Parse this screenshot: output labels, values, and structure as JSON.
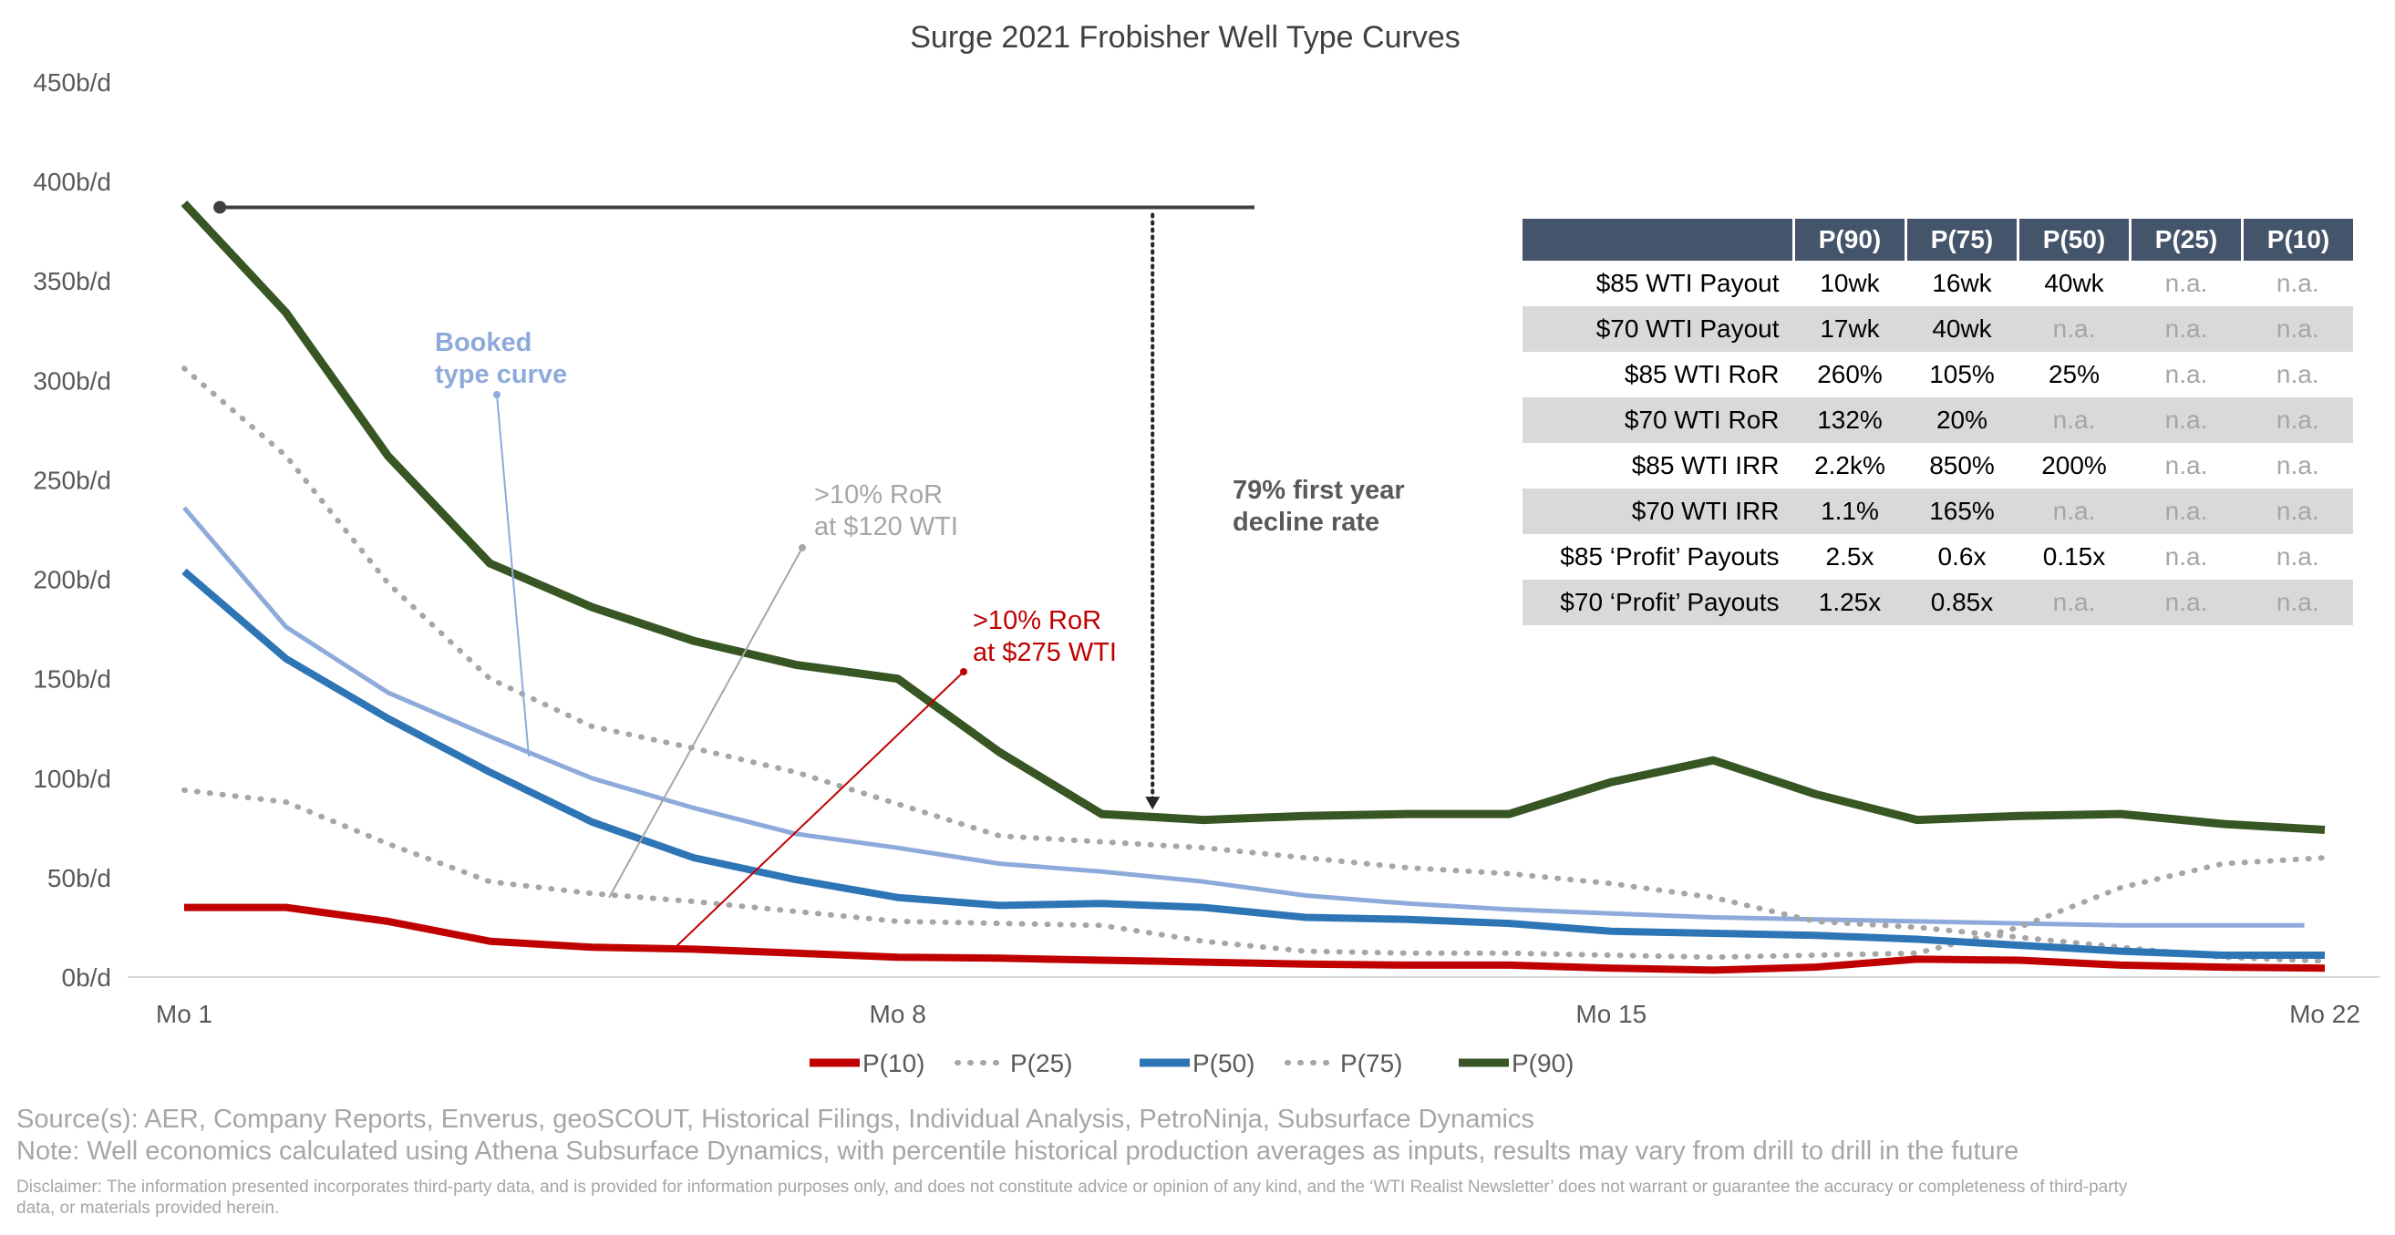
{
  "chart_data": {
    "type": "line",
    "title": "Surge 2021 Frobisher Well Type Curves",
    "xlabel": "",
    "ylabel": "",
    "ylim": [
      0,
      450
    ],
    "yticks": [
      "0b/d",
      "50b/d",
      "100b/d",
      "150b/d",
      "200b/d",
      "250b/d",
      "300b/d",
      "350b/d",
      "400b/d",
      "450b/d"
    ],
    "xtick_positions": [
      1,
      8,
      15,
      22
    ],
    "xtick_labels": [
      "Mo 1",
      "Mo 8",
      "Mo 15",
      "Mo 22"
    ],
    "legend_position": "bottom",
    "series": [
      {
        "name": "P(10)",
        "color": "#c00000",
        "style": "solid",
        "x": [
          1,
          2,
          3,
          4,
          5,
          6,
          7,
          8,
          9,
          10,
          11,
          12,
          13,
          14,
          15,
          16,
          17,
          18,
          19,
          20,
          21,
          22
        ],
        "values": [
          35,
          35,
          28,
          18,
          15,
          14,
          12,
          10,
          9.5,
          8.5,
          7.5,
          6.5,
          6,
          6,
          4.5,
          3.5,
          5,
          9,
          8.5,
          6,
          5,
          4.5
        ]
      },
      {
        "name": "P(25)",
        "color": "#a6a6a6",
        "style": "dotted",
        "x": [
          1,
          2,
          3,
          4,
          5,
          6,
          7,
          8,
          9,
          10,
          11,
          12,
          13,
          14,
          15,
          16,
          17,
          18,
          19,
          20,
          21,
          22
        ],
        "values": [
          94,
          88,
          67,
          48,
          42,
          38,
          33,
          28,
          27,
          26,
          18,
          13,
          12,
          12,
          11,
          10,
          11,
          12,
          25,
          45,
          57,
          60
        ]
      },
      {
        "name": "P(50)",
        "color": "#2e75b6",
        "style": "solid",
        "x": [
          1,
          2,
          3,
          4,
          5,
          6,
          7,
          8,
          9,
          10,
          11,
          12,
          13,
          14,
          15,
          16,
          17,
          18,
          19,
          20,
          21,
          22
        ],
        "values": [
          204,
          160,
          130,
          103,
          78,
          60,
          49,
          40,
          36,
          37,
          35,
          30,
          29,
          27,
          23,
          22,
          21,
          19,
          16,
          13,
          11,
          11
        ]
      },
      {
        "name": "P(75)",
        "color": "#a6a6a6",
        "style": "dotted",
        "x": [
          1,
          2,
          3,
          4,
          5,
          6,
          7,
          8,
          9,
          10,
          11,
          12,
          13,
          14,
          15,
          16,
          17,
          18,
          19,
          20,
          21,
          22
        ],
        "values": [
          306,
          262,
          198,
          150,
          126,
          115,
          103,
          87,
          71,
          68,
          65,
          60,
          55,
          52,
          47,
          40,
          28,
          25,
          20,
          15,
          10,
          8
        ]
      },
      {
        "name": "P(90)",
        "color": "#375623",
        "style": "solid",
        "x": [
          1,
          2,
          3,
          4,
          5,
          6,
          7,
          8,
          9,
          10,
          11,
          12,
          13,
          14,
          15,
          16,
          17,
          18,
          19,
          20,
          21,
          22
        ],
        "values": [
          389,
          334,
          262,
          208,
          186,
          169,
          157,
          150,
          113,
          82,
          79,
          81,
          82,
          82,
          98,
          109,
          92,
          79,
          81,
          82,
          77,
          74
        ]
      }
    ],
    "booked_type_curve": {
      "name": "Booked type curve",
      "color": "#8eaadb",
      "x": [
        1,
        2,
        3,
        4,
        5,
        6,
        7,
        8,
        9,
        10,
        11,
        12,
        13,
        14,
        15,
        16,
        17,
        18,
        19,
        20,
        21,
        21.8
      ],
      "values": [
        236,
        176,
        143,
        121,
        100,
        85,
        72,
        65,
        57,
        53,
        48,
        41,
        37,
        34,
        32,
        30,
        29,
        28,
        27,
        26,
        26,
        26
      ]
    },
    "reference_line": {
      "y": 387,
      "x_start": 1.35,
      "x_end": 11.5
    },
    "decline_arrow": {
      "x": 10.5,
      "y_from": 387,
      "y_to": 87
    },
    "annotations": {
      "booked": "Booked\ntype curve",
      "ror120_1": ">10% RoR",
      "ror120_2": "at $120 WTI",
      "ror275_1": ">10% RoR",
      "ror275_2": "at $275 WTI",
      "decline_1": "79% first year",
      "decline_2": "decline rate"
    },
    "annotation_colors": {
      "booked": "#8eaadb",
      "ror120": "#a6a6a6",
      "ror275": "#c00000",
      "decline": "#595959"
    }
  },
  "table": {
    "header": [
      "",
      "P(90)",
      "P(75)",
      "P(50)",
      "P(25)",
      "P(10)"
    ],
    "rows": [
      {
        "label": "$85 WTI Payout",
        "cells": [
          "10wk",
          "16wk",
          "40wk",
          "n.a.",
          "n.a."
        ]
      },
      {
        "label": "$70 WTI Payout",
        "cells": [
          "17wk",
          "40wk",
          "n.a.",
          "n.a.",
          "n.a."
        ]
      },
      {
        "label": "$85 WTI RoR",
        "cells": [
          "260%",
          "105%",
          "25%",
          "n.a.",
          "n.a."
        ]
      },
      {
        "label": "$70 WTI RoR",
        "cells": [
          "132%",
          "20%",
          "n.a.",
          "n.a.",
          "n.a."
        ]
      },
      {
        "label": "$85 WTI IRR",
        "cells": [
          "2.2k%",
          "850%",
          "200%",
          "n.a.",
          "n.a."
        ]
      },
      {
        "label": "$70 WTI IRR",
        "cells": [
          "1.1%",
          "165%",
          "n.a.",
          "n.a.",
          "n.a."
        ]
      },
      {
        "label": "$85 ‘Profit’ Payouts",
        "cells": [
          "2.5x",
          "0.6x",
          "0.15x",
          "n.a.",
          "n.a."
        ]
      },
      {
        "label": "$70 ‘Profit’ Payouts",
        "cells": [
          "1.25x",
          "0.85x",
          "n.a.",
          "n.a.",
          "n.a."
        ]
      }
    ]
  },
  "footer": {
    "source": "Source(s): AER, Company Reports, Enverus, geoSCOUT, Historical Filings, Individual Analysis, PetroNinja, Subsurface Dynamics",
    "note": "Note: Well economics calculated using Athena Subsurface Dynamics, with percentile historical production averages as inputs, results may vary from drill to drill in the future",
    "disclaimer": "Disclaimer: The information presented incorporates third-party data, and is provided for information purposes only, and does not constitute advice or opinion of any kind, and the ‘WTI Realist Newsletter’ does not warrant or guarantee the accuracy or completeness of third-party data, or materials provided herein."
  }
}
